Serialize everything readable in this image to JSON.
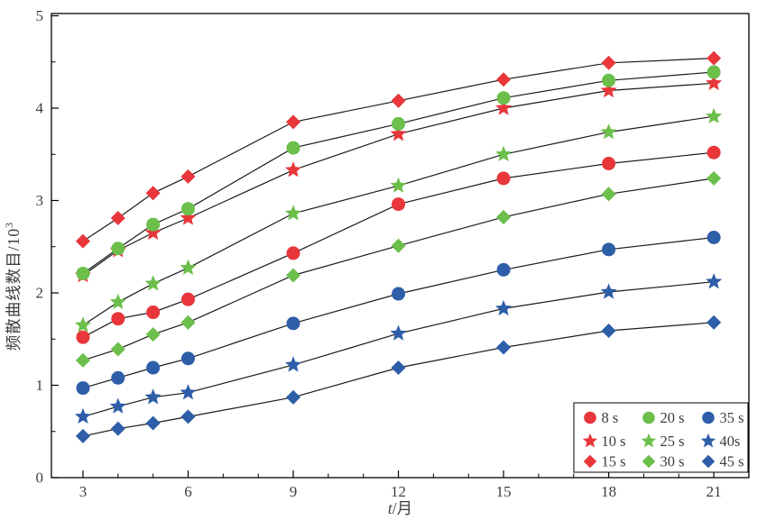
{
  "figure": {
    "background": "#ffffff",
    "frame_color": "#000000",
    "line_color": "#1b1b1b",
    "text_color": "#3d3d3d"
  },
  "chart_data": {
    "type": "line",
    "title": "",
    "xlabel": {
      "variable": "t",
      "rest": "/月"
    },
    "ylabel": {
      "main": "频散曲线数目/10",
      "sup": "3"
    },
    "x": [
      3,
      4,
      5,
      6,
      9,
      12,
      15,
      18,
      21
    ],
    "xlim": [
      2.1,
      22.0
    ],
    "ylim": [
      0,
      5
    ],
    "x_major_ticks": [
      3,
      6,
      9,
      12,
      15,
      18,
      21
    ],
    "x_major_tick_labels": [
      "3",
      "6",
      "9",
      "12",
      "15",
      "18",
      "21"
    ],
    "x_minor_ticks": [
      4,
      5,
      7,
      8,
      10,
      11,
      13,
      14,
      16,
      17,
      19,
      20
    ],
    "y_major_ticks": [
      0,
      1,
      2,
      3,
      4,
      5
    ],
    "y_major_tick_labels": [
      "0",
      "1",
      "2",
      "3",
      "4",
      "5"
    ],
    "y_minor_ticks": [
      0.5,
      1.5,
      2.5,
      3.5,
      4.5
    ],
    "grid": false,
    "legend_position": "inside-bottom-right",
    "series": [
      {
        "name": "8 s",
        "marker": "circle",
        "color": "#e8363a",
        "values": [
          1.52,
          1.72,
          1.79,
          1.93,
          2.43,
          2.96,
          3.24,
          3.4,
          3.52
        ]
      },
      {
        "name": "10 s",
        "marker": "star",
        "color": "#e8363a",
        "values": [
          2.19,
          2.46,
          2.65,
          2.81,
          3.33,
          3.72,
          4.0,
          4.19,
          4.27
        ]
      },
      {
        "name": "15 s",
        "marker": "diamond",
        "color": "#e8363a",
        "values": [
          2.56,
          2.81,
          3.08,
          3.26,
          3.85,
          4.08,
          4.31,
          4.49,
          4.54
        ]
      },
      {
        "name": "20 s",
        "marker": "circle",
        "color": "#6bbf4a",
        "values": [
          2.21,
          2.48,
          2.74,
          2.91,
          3.57,
          3.83,
          4.11,
          4.3,
          4.39
        ]
      },
      {
        "name": "25 s",
        "marker": "star",
        "color": "#6bbf4a",
        "values": [
          1.65,
          1.9,
          2.1,
          2.27,
          2.86,
          3.16,
          3.5,
          3.74,
          3.91
        ]
      },
      {
        "name": "30 s",
        "marker": "diamond",
        "color": "#6bbf4a",
        "values": [
          1.27,
          1.39,
          1.55,
          1.68,
          2.19,
          2.51,
          2.82,
          3.07,
          3.24
        ]
      },
      {
        "name": "35 s",
        "marker": "circle",
        "color": "#2e5ea8",
        "values": [
          0.97,
          1.08,
          1.19,
          1.29,
          1.67,
          1.99,
          2.25,
          2.47,
          2.6
        ]
      },
      {
        "name": "40s",
        "marker": "star",
        "color": "#2e5ea8",
        "values": [
          0.66,
          0.77,
          0.87,
          0.92,
          1.22,
          1.56,
          1.83,
          2.01,
          2.12
        ]
      },
      {
        "name": "45 s",
        "marker": "diamond",
        "color": "#2e5ea8",
        "values": [
          0.45,
          0.53,
          0.59,
          0.66,
          0.87,
          1.19,
          1.41,
          1.59,
          1.68
        ]
      }
    ],
    "legend_columns": [
      [
        "8 s",
        "10 s",
        "15 s"
      ],
      [
        "20 s",
        "25 s",
        "30 s"
      ],
      [
        "35 s",
        "40s",
        "45 s"
      ]
    ]
  }
}
